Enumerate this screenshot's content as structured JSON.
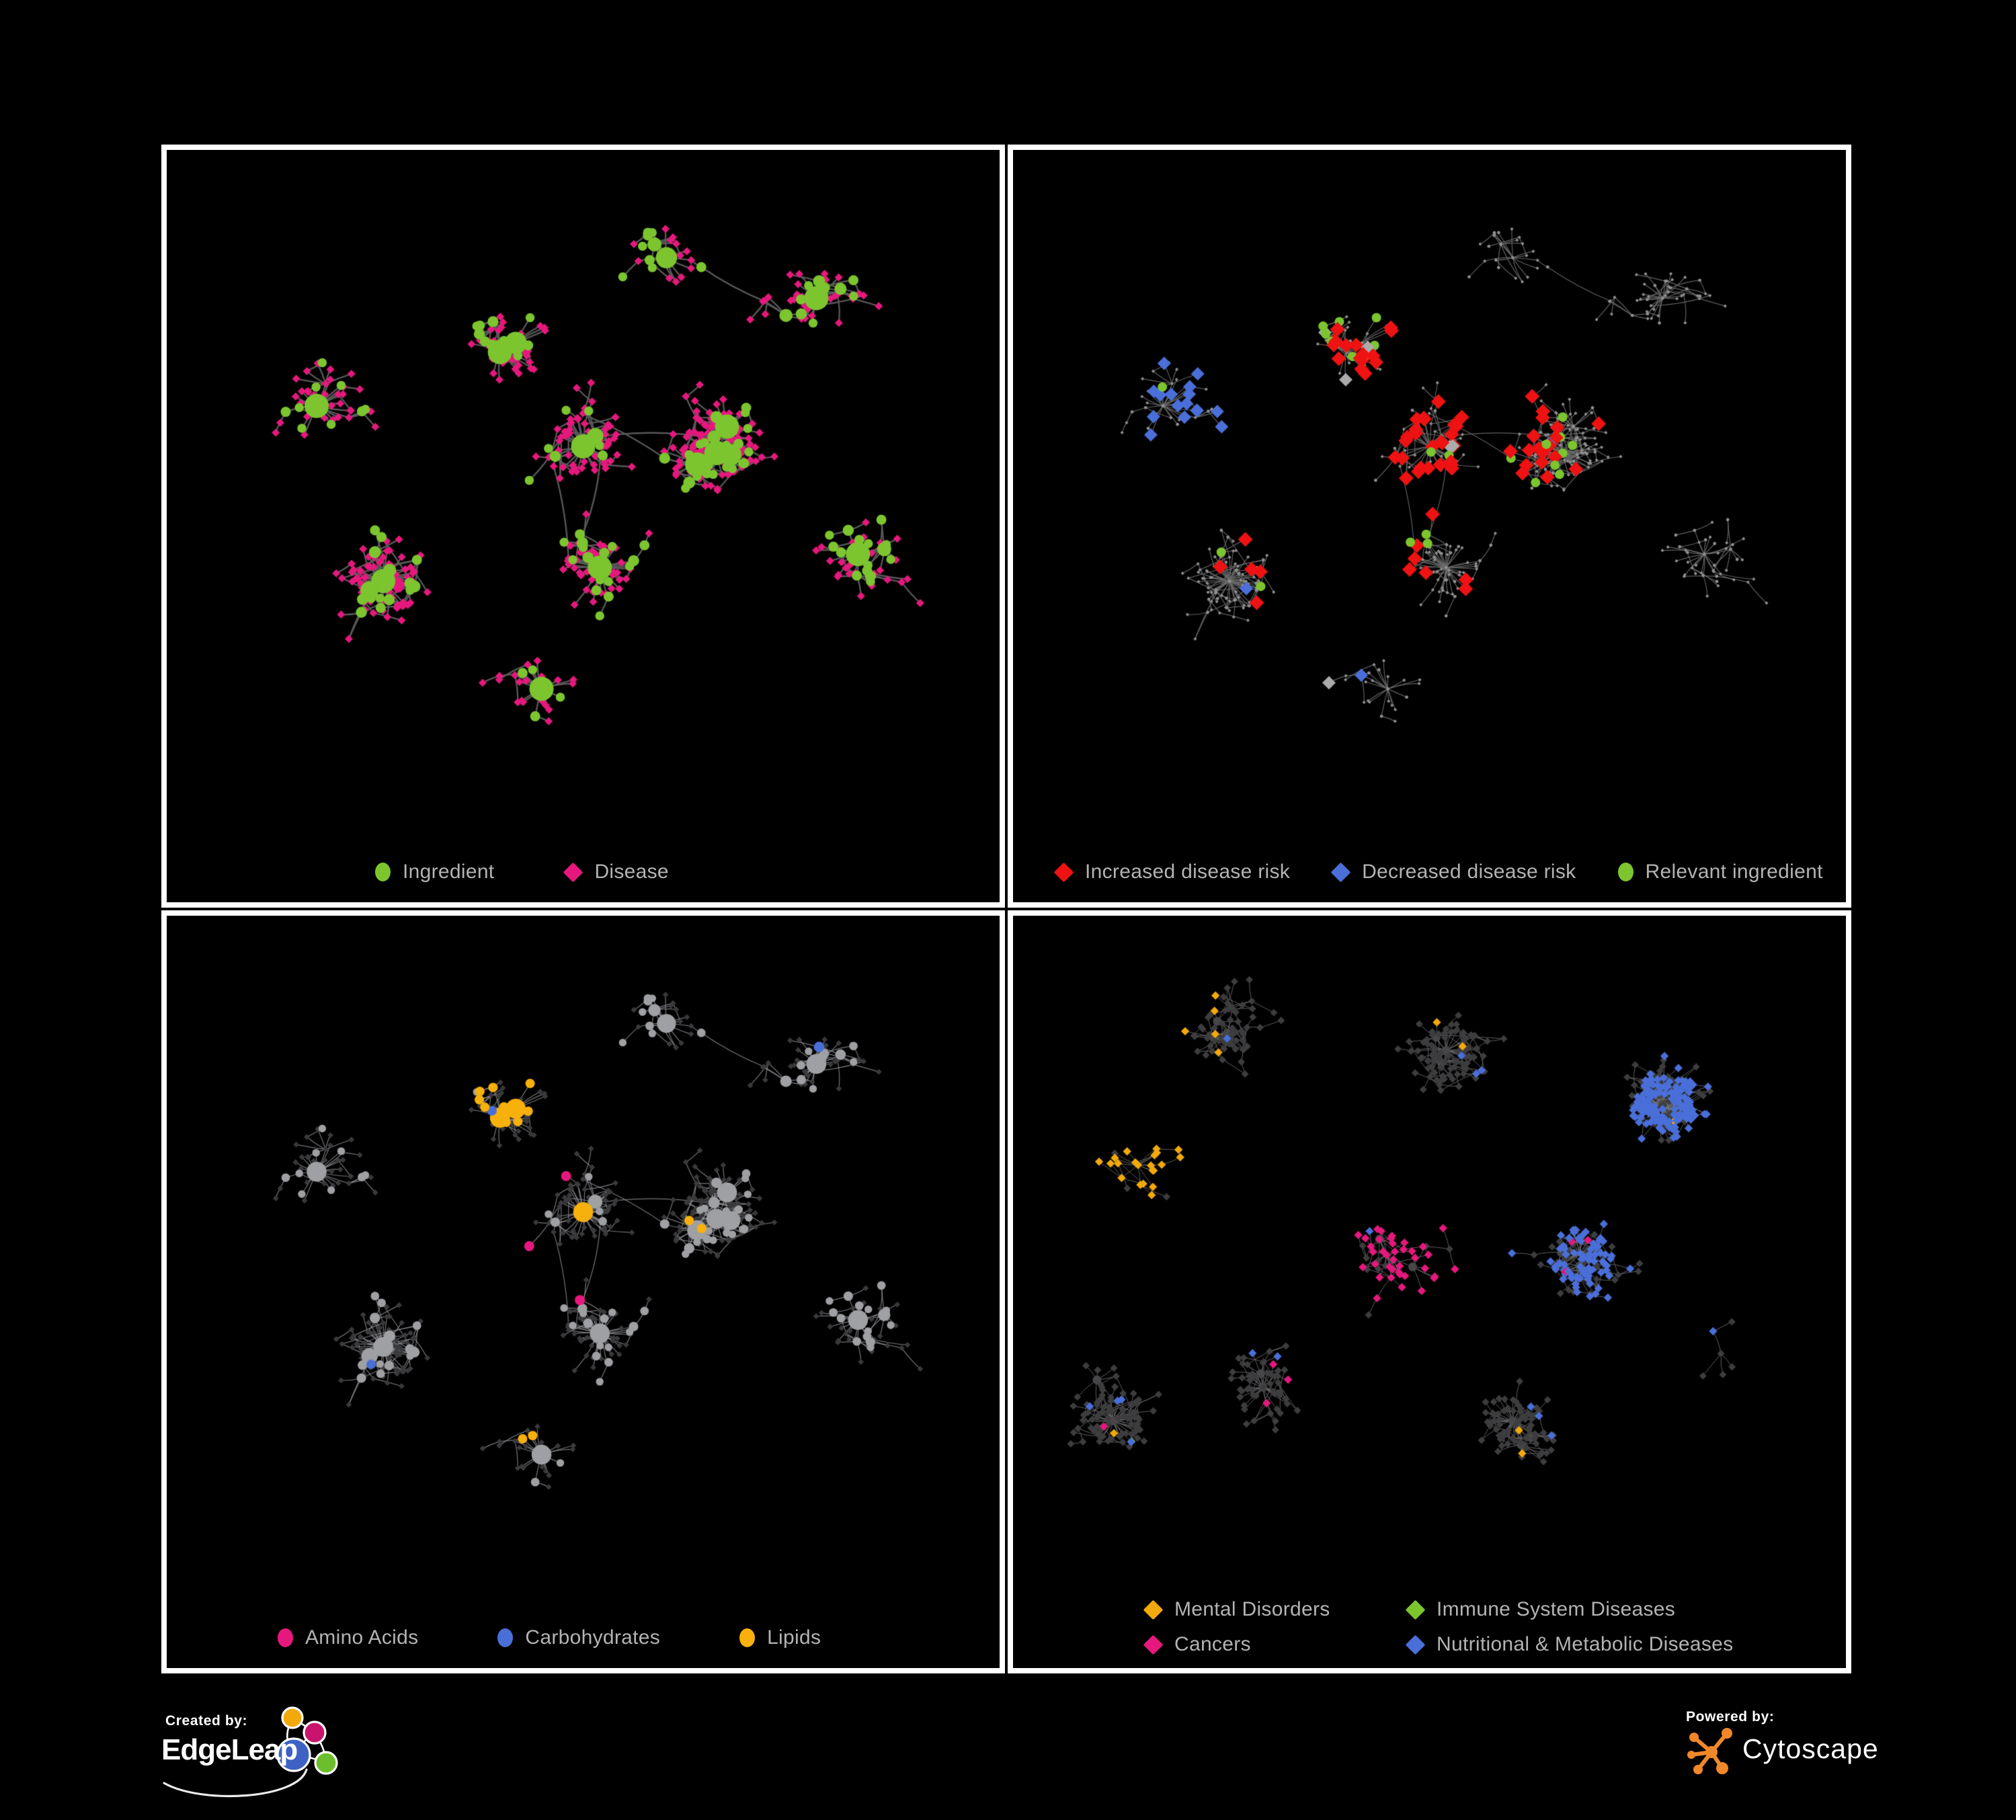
{
  "credits": {
    "left_label": "Created by:",
    "left_brand": "EdgeLeap",
    "right_label": "Powered by:",
    "right_brand": "Cytoscape",
    "edgeleap_logo_colors": {
      "orange": "#F2A90C",
      "magenta": "#C9146E",
      "blue": "#3E62C4",
      "green": "#6CBE2C"
    },
    "cytoscape_logo_color": "#F0882A"
  },
  "chart_data": {
    "type": "network",
    "description": "Four-panel ingredient-disease network figure",
    "layouts": {
      "A": {
        "seed": 7,
        "node_count": 620,
        "step": 34,
        "extra_edges": 22,
        "roots": [
          [
            0.18,
            0.38
          ],
          [
            0.4,
            0.3
          ],
          [
            0.5,
            0.44
          ],
          [
            0.26,
            0.64
          ],
          [
            0.45,
            0.8
          ],
          [
            0.66,
            0.45
          ],
          [
            0.78,
            0.22
          ],
          [
            0.6,
            0.16
          ],
          [
            0.83,
            0.6
          ],
          [
            0.52,
            0.62
          ]
        ]
      },
      "B": {
        "seed": 13,
        "node_count": 820,
        "step": 30,
        "extra_edges": 55,
        "roots": [
          [
            0.15,
            0.37
          ],
          [
            0.44,
            0.48
          ],
          [
            0.68,
            0.52
          ],
          [
            0.78,
            0.28
          ],
          [
            0.3,
            0.7
          ],
          [
            0.52,
            0.2
          ],
          [
            0.24,
            0.18
          ],
          [
            0.85,
            0.65
          ],
          [
            0.12,
            0.75
          ],
          [
            0.6,
            0.75
          ]
        ]
      }
    },
    "panels": [
      {
        "name": "ingredient-disease-network",
        "layout": "A",
        "style": "ingredient_disease",
        "edge_width": 2.4,
        "edge_alpha": 0.95,
        "colors": {
          "ingredient": "#7CC52F",
          "disease": "#E6187D",
          "edge": "#5C5C5C"
        },
        "legend": [
          {
            "label": "Ingredient",
            "shape": "ellipse",
            "color": "#7CC52F"
          },
          {
            "label": "Disease",
            "shape": "diamond",
            "color": "#E6187D"
          }
        ]
      },
      {
        "name": "disease-risk-network",
        "layout": "A",
        "style": "risk",
        "edge_width": 1.2,
        "edge_alpha": 0.9,
        "colors": {
          "base": "#8F8F8F",
          "edge": "#6A6A6A",
          "increased": "#EE1212",
          "decreased": "#4A6FD9",
          "neutral": "#ABABAB",
          "ingredient": "#7CC52F"
        },
        "rules": {
          "seed": 104,
          "hotspot": [
            0.44,
            0.4
          ],
          "hotspot_sigma": 0.13,
          "red_p": 0.5,
          "blue_center": [
            0.21,
            0.35
          ],
          "blue_radius": 0.1,
          "blue_p": 0.5,
          "blue_scatter": 0.006,
          "silver_p": 0.012,
          "silver_center_bonus": 0.02,
          "green_radius": 0.28,
          "green_p": 0.3,
          "green_scatter": 0.02
        },
        "legend": [
          {
            "label": "Increased disease risk",
            "shape": "diamond",
            "color": "#EE1212"
          },
          {
            "label": "Decreased disease risk",
            "shape": "diamond",
            "color": "#4A6FD9"
          },
          {
            "label": "Relevant ingredient",
            "shape": "ellipse",
            "color": "#7CC52F"
          }
        ]
      },
      {
        "name": "compound-class-network",
        "layout": "A",
        "style": "compound_class",
        "edge_width": 1.2,
        "edge_alpha": 0.8,
        "colors": {
          "base": "#9FA0A3",
          "disease": "#3A3A3C",
          "edge": "#94949A",
          "amino": "#E6187D",
          "carb": "#4A6FD9",
          "lipid": "#F7B00C"
        },
        "rules": {
          "seed": 103,
          "lipid_center": [
            0.4,
            0.29
          ],
          "lipid_sigma": 0.075,
          "lipid_p": 0.85,
          "lipid_scatter": 0.035,
          "carb_center": [
            0.44,
            0.27
          ],
          "carb_sigma": 0.05,
          "carb_p": 0.45,
          "carb_scatter": 0.012,
          "amino_scatter": 0.05
        },
        "legend": [
          {
            "label": "Amino Acids",
            "shape": "ellipse",
            "color": "#E6187D"
          },
          {
            "label": "Carbohydrates",
            "shape": "ellipse",
            "color": "#4A6FD9"
          },
          {
            "label": "Lipids",
            "shape": "ellipse",
            "color": "#F7B00C"
          }
        ]
      },
      {
        "name": "disease-class-network",
        "layout": "B",
        "style": "disease_class",
        "edge_width": 1.0,
        "edge_alpha": 0.85,
        "colors": {
          "base": "#3D3D3F",
          "hub": "#47474A",
          "edge": "#6E6E6E",
          "mental": "#F2A90C",
          "immune": "#7CC52F",
          "cancer": "#E6187D",
          "nutritional": "#4A6FD9"
        },
        "rules": {
          "seed": 105,
          "mental": [
            0.15,
            0.36,
            0.085,
            0.9
          ],
          "cancer": [
            0.46,
            0.5,
            0.08,
            0.8
          ],
          "nutritional": [
            [
              0.7,
              0.53
            ],
            [
              0.8,
              0.28
            ]
          ],
          "nutritional_sigma": 0.09,
          "nutritional_p": 0.75,
          "scatter": {
            "nutritional": 0.018,
            "mental": 0.01,
            "cancer": 0.008,
            "immune": 0.007
          }
        },
        "legend": [
          {
            "label": "Mental Disorders",
            "shape": "diamond",
            "color": "#F2A90C"
          },
          {
            "label": "Immune System Diseases",
            "shape": "diamond",
            "color": "#7CC52F"
          },
          {
            "label": "Cancers",
            "shape": "diamond",
            "color": "#E6187D"
          },
          {
            "label": "Nutritional & Metabolic Diseases",
            "shape": "diamond",
            "color": "#4A6FD9"
          }
        ]
      }
    ]
  }
}
